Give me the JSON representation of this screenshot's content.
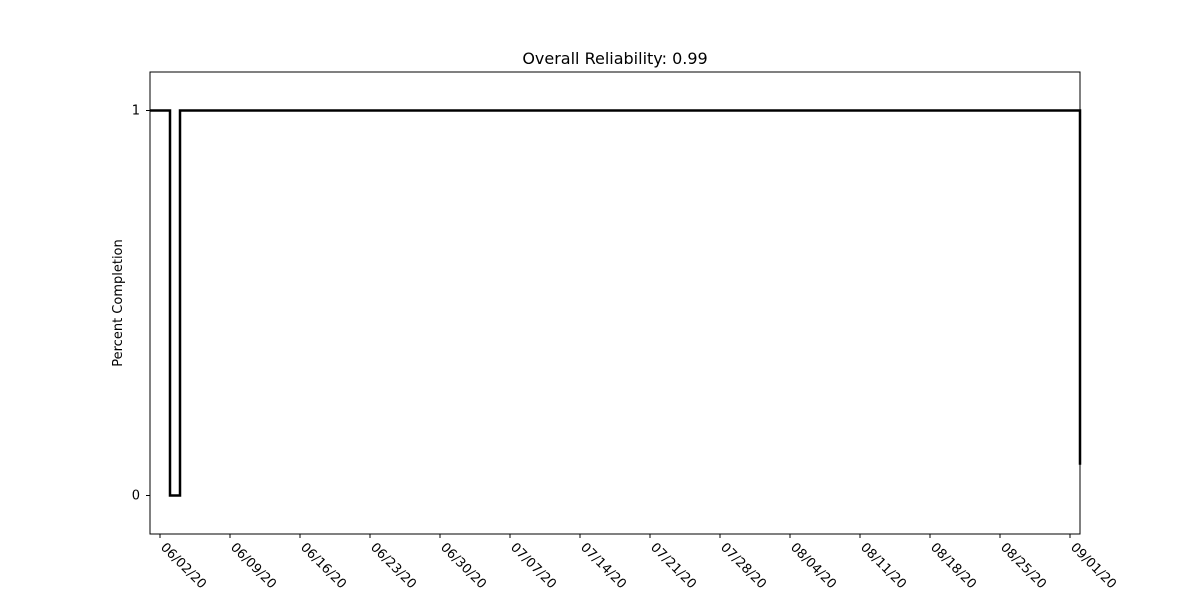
{
  "chart_data": {
    "type": "line",
    "title": "Overall Reliability: 0.99",
    "xlabel": "",
    "ylabel": "Percent Completion",
    "x_tick_labels": [
      "06/02/20",
      "06/09/20",
      "06/16/20",
      "06/23/20",
      "06/30/20",
      "07/07/20",
      "07/14/20",
      "07/21/20",
      "07/28/20",
      "08/04/20",
      "08/11/20",
      "08/18/20",
      "08/25/20",
      "09/01/20"
    ],
    "y_tick_labels": [
      "0",
      "1"
    ],
    "xlim": [
      "2020-05-31",
      "2020-09-01"
    ],
    "ylim": [
      -0.1,
      1.1
    ],
    "grid": false,
    "legend": "none",
    "series": [
      {
        "line_color": "#000000",
        "style": "step",
        "points": [
          {
            "x": "2020-05-31",
            "y": 1
          },
          {
            "x": "2020-06-01",
            "y": 1
          },
          {
            "x": "2020-06-02",
            "y": 1
          },
          {
            "x": "2020-06-02",
            "y": 0.34
          },
          {
            "x": "2020-06-02",
            "y": 0
          },
          {
            "x": "2020-06-03",
            "y": 0
          },
          {
            "x": "2020-06-03",
            "y": 0.17
          },
          {
            "x": "2020-06-03",
            "y": 1
          },
          {
            "x": "2020-06-10",
            "y": 1
          },
          {
            "x": "2020-06-20",
            "y": 1
          },
          {
            "x": "2020-07-01",
            "y": 1
          },
          {
            "x": "2020-07-15",
            "y": 1
          },
          {
            "x": "2020-08-01",
            "y": 1
          },
          {
            "x": "2020-08-15",
            "y": 1
          },
          {
            "x": "2020-08-31",
            "y": 1
          },
          {
            "x": "2020-09-01",
            "y": 1
          },
          {
            "x": "2020-09-01",
            "y": 0.08
          }
        ]
      }
    ]
  }
}
